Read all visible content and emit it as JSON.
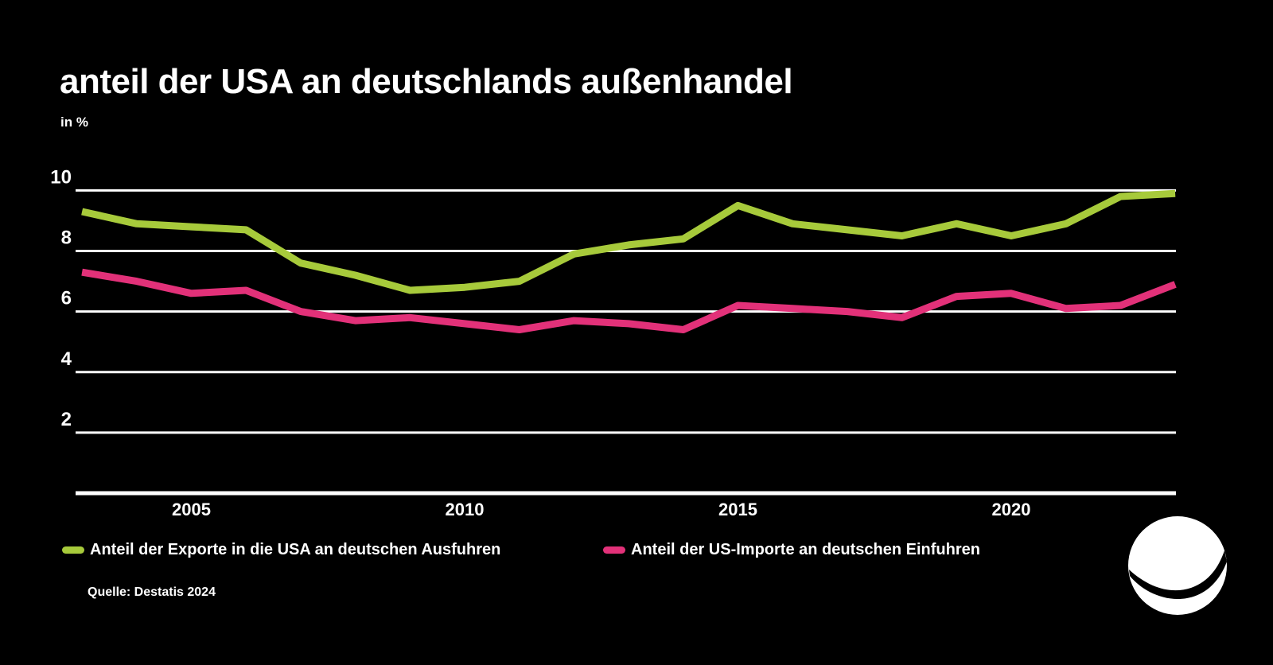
{
  "title": "anteil der USA an deutschlands außenhandel",
  "unit_label": "in %",
  "source": "Quelle: Destatis 2024",
  "colors": {
    "background": "#000000",
    "text": "#ffffff",
    "grid": "#ffffff",
    "exports": "#a7ca3b",
    "imports": "#e23179"
  },
  "legend": [
    {
      "label": "Anteil der Exporte in die USA an deutschen Ausfuhren",
      "series_key": "exports"
    },
    {
      "label": "Anteil der US-Importe an deutschen Einfuhren",
      "series_key": "imports"
    }
  ],
  "logo_name": "sphere-swoosh-logo",
  "chart_data": {
    "type": "line",
    "title": "anteil der USA an deutschlands außenhandel",
    "xlabel": "",
    "ylabel": "in %",
    "x": [
      2003,
      2004,
      2005,
      2006,
      2007,
      2008,
      2009,
      2010,
      2011,
      2012,
      2013,
      2014,
      2015,
      2016,
      2017,
      2018,
      2019,
      2020,
      2021,
      2022,
      2023
    ],
    "series": [
      {
        "name": "Anteil der Exporte in die USA an deutschen Ausfuhren",
        "color_key": "exports",
        "values": [
          9.3,
          8.9,
          8.8,
          8.7,
          7.6,
          7.2,
          6.7,
          6.8,
          7.0,
          7.9,
          8.2,
          8.4,
          9.5,
          8.9,
          8.7,
          8.5,
          8.9,
          8.5,
          8.9,
          9.8,
          9.9
        ]
      },
      {
        "name": "Anteil der US-Importe an deutschen Einfuhren",
        "color_key": "imports",
        "values": [
          7.3,
          7.0,
          6.6,
          6.7,
          6.0,
          5.7,
          5.8,
          5.6,
          5.4,
          5.7,
          5.6,
          5.4,
          6.2,
          6.1,
          6.0,
          5.8,
          6.5,
          6.6,
          6.1,
          6.2,
          6.9
        ]
      }
    ],
    "ylim": [
      0,
      10.8
    ],
    "yticks": [
      2,
      4,
      6,
      8,
      10
    ],
    "xticks": [
      2005,
      2010,
      2015,
      2020
    ],
    "grid": true,
    "legend_position": "bottom"
  }
}
